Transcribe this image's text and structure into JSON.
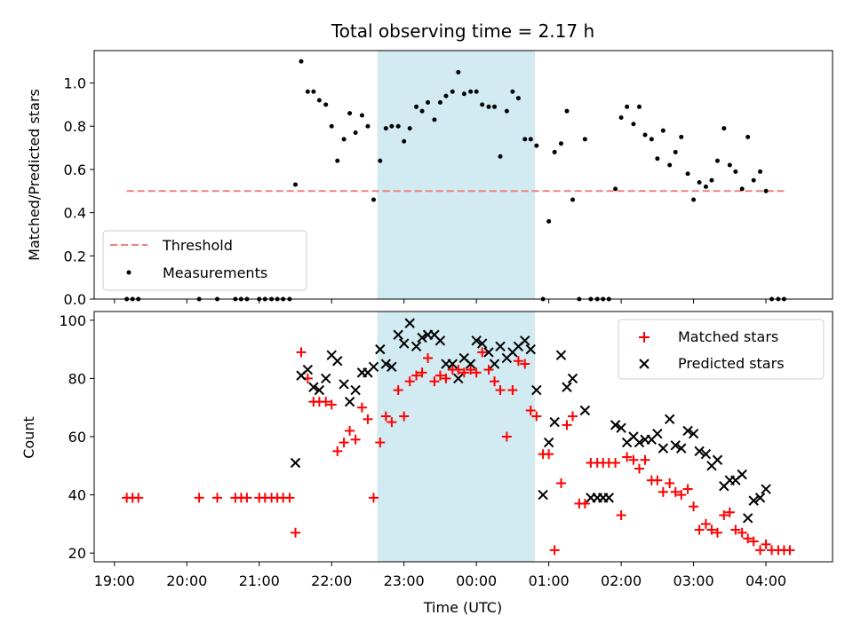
{
  "chart_data": {
    "type": "scatter",
    "title": "Total observing time = 2.17 h",
    "xlabel": "Time (UTC)",
    "x_ticks": [
      "19:00",
      "20:00",
      "21:00",
      "22:00",
      "23:00",
      "00:00",
      "01:00",
      "02:00",
      "03:00",
      "04:00"
    ],
    "x_range_hours": [
      18.72,
      28.92
    ],
    "shaded_interval_hours": [
      22.63,
      24.81
    ],
    "shade_color": "#add8e6",
    "top": {
      "ylabel": "Matched/Predicted stars",
      "ylim": [
        0,
        1.15
      ],
      "y_ticks": [
        0.0,
        0.2,
        0.4,
        0.6,
        0.8,
        1.0
      ],
      "legend_position": "lower-left",
      "threshold": {
        "name": "Threshold",
        "value": 0.5,
        "x_range_hours": [
          19.17,
          28.25
        ],
        "color": "#f08080",
        "style": "dashed"
      },
      "series": [
        {
          "name": "Measurements",
          "color": "#000000",
          "marker": "dot",
          "points": [
            [
              19.17,
              0
            ],
            [
              19.25,
              0
            ],
            [
              19.33,
              0
            ],
            [
              20.17,
              0
            ],
            [
              20.42,
              0
            ],
            [
              20.67,
              0
            ],
            [
              20.75,
              0
            ],
            [
              20.83,
              0
            ],
            [
              21.0,
              0
            ],
            [
              21.08,
              0
            ],
            [
              21.17,
              0
            ],
            [
              21.25,
              0
            ],
            [
              21.33,
              0
            ],
            [
              21.42,
              0
            ],
            [
              21.5,
              0.53
            ],
            [
              21.58,
              1.1
            ],
            [
              21.67,
              0.96
            ],
            [
              21.75,
              0.96
            ],
            [
              21.83,
              0.92
            ],
            [
              21.92,
              0.9
            ],
            [
              22.0,
              0.8
            ],
            [
              22.08,
              0.64
            ],
            [
              22.17,
              0.74
            ],
            [
              22.25,
              0.86
            ],
            [
              22.33,
              0.77
            ],
            [
              22.42,
              0.85
            ],
            [
              22.5,
              0.8
            ],
            [
              22.58,
              0.46
            ],
            [
              22.67,
              0.64
            ],
            [
              22.75,
              0.79
            ],
            [
              22.83,
              0.8
            ],
            [
              22.92,
              0.8
            ],
            [
              23.0,
              0.73
            ],
            [
              23.08,
              0.79
            ],
            [
              23.17,
              0.89
            ],
            [
              23.25,
              0.87
            ],
            [
              23.33,
              0.91
            ],
            [
              23.42,
              0.83
            ],
            [
              23.5,
              0.91
            ],
            [
              23.58,
              0.94
            ],
            [
              23.67,
              0.96
            ],
            [
              23.75,
              1.05
            ],
            [
              23.83,
              0.95
            ],
            [
              23.92,
              0.96
            ],
            [
              24.0,
              0.96
            ],
            [
              24.08,
              0.9
            ],
            [
              24.17,
              0.89
            ],
            [
              24.25,
              0.89
            ],
            [
              24.33,
              0.66
            ],
            [
              24.42,
              0.87
            ],
            [
              24.5,
              0.96
            ],
            [
              24.58,
              0.93
            ],
            [
              24.67,
              0.74
            ],
            [
              24.75,
              0.74
            ],
            [
              24.83,
              0.71
            ],
            [
              24.92,
              0
            ],
            [
              25.0,
              0.36
            ],
            [
              25.08,
              0.68
            ],
            [
              25.17,
              0.72
            ],
            [
              25.25,
              0.87
            ],
            [
              25.33,
              0.46
            ],
            [
              25.42,
              0
            ],
            [
              25.5,
              0.74
            ],
            [
              25.58,
              0
            ],
            [
              25.67,
              0
            ],
            [
              25.75,
              0
            ],
            [
              25.83,
              0
            ],
            [
              25.92,
              0.51
            ],
            [
              26.0,
              0.84
            ],
            [
              26.08,
              0.89
            ],
            [
              26.17,
              0.81
            ],
            [
              26.25,
              0.89
            ],
            [
              26.33,
              0.76
            ],
            [
              26.42,
              0.74
            ],
            [
              26.5,
              0.65
            ],
            [
              26.58,
              0.78
            ],
            [
              26.67,
              0.62
            ],
            [
              26.75,
              0.68
            ],
            [
              26.83,
              0.75
            ],
            [
              26.92,
              0.58
            ],
            [
              27.0,
              0.46
            ],
            [
              27.08,
              0.54
            ],
            [
              27.17,
              0.52
            ],
            [
              27.25,
              0.55
            ],
            [
              27.33,
              0.64
            ],
            [
              27.42,
              0.79
            ],
            [
              27.5,
              0.62
            ],
            [
              27.58,
              0.59
            ],
            [
              27.67,
              0.51
            ],
            [
              27.75,
              0.75
            ],
            [
              27.83,
              0.55
            ],
            [
              27.92,
              0.59
            ],
            [
              28.0,
              0.5
            ],
            [
              28.08,
              0
            ],
            [
              28.17,
              0
            ],
            [
              28.25,
              0
            ]
          ]
        }
      ]
    },
    "bottom": {
      "ylabel": "Count",
      "ylim": [
        17,
        103
      ],
      "y_ticks": [
        20,
        40,
        60,
        80,
        100
      ],
      "legend_position": "upper-right",
      "series": [
        {
          "name": "Matched stars",
          "color": "#ff0000",
          "marker": "plus",
          "points": [
            [
              19.17,
              39
            ],
            [
              19.25,
              39
            ],
            [
              19.33,
              39
            ],
            [
              20.17,
              39
            ],
            [
              20.42,
              39
            ],
            [
              20.67,
              39
            ],
            [
              20.75,
              39
            ],
            [
              20.83,
              39
            ],
            [
              21.0,
              39
            ],
            [
              21.08,
              39
            ],
            [
              21.17,
              39
            ],
            [
              21.25,
              39
            ],
            [
              21.33,
              39
            ],
            [
              21.42,
              39
            ],
            [
              21.5,
              27
            ],
            [
              21.58,
              89
            ],
            [
              21.67,
              80
            ],
            [
              21.75,
              72
            ],
            [
              21.83,
              72
            ],
            [
              21.92,
              72
            ],
            [
              22.0,
              71
            ],
            [
              22.08,
              55
            ],
            [
              22.17,
              58
            ],
            [
              22.25,
              62
            ],
            [
              22.33,
              59
            ],
            [
              22.42,
              70
            ],
            [
              22.5,
              66
            ],
            [
              22.58,
              39
            ],
            [
              22.67,
              58
            ],
            [
              22.75,
              67
            ],
            [
              22.83,
              65
            ],
            [
              22.92,
              76
            ],
            [
              23.0,
              67
            ],
            [
              23.08,
              79
            ],
            [
              23.17,
              81
            ],
            [
              23.25,
              82
            ],
            [
              23.33,
              87
            ],
            [
              23.42,
              79
            ],
            [
              23.5,
              81
            ],
            [
              23.58,
              80
            ],
            [
              23.67,
              83
            ],
            [
              23.75,
              83
            ],
            [
              23.83,
              82
            ],
            [
              23.92,
              83
            ],
            [
              24.0,
              82
            ],
            [
              24.08,
              89
            ],
            [
              24.17,
              83
            ],
            [
              24.25,
              79
            ],
            [
              24.33,
              76
            ],
            [
              24.42,
              60
            ],
            [
              24.5,
              76
            ],
            [
              24.58,
              86
            ],
            [
              24.67,
              85
            ],
            [
              24.75,
              69
            ],
            [
              24.83,
              67
            ],
            [
              24.92,
              54
            ],
            [
              25.0,
              54
            ],
            [
              25.08,
              21
            ],
            [
              25.17,
              44
            ],
            [
              25.25,
              64
            ],
            [
              25.33,
              67
            ],
            [
              25.42,
              37
            ],
            [
              25.5,
              37
            ],
            [
              25.58,
              51
            ],
            [
              25.67,
              51
            ],
            [
              25.75,
              51
            ],
            [
              25.83,
              51
            ],
            [
              25.92,
              51
            ],
            [
              26.0,
              33
            ],
            [
              26.08,
              53
            ],
            [
              26.17,
              52
            ],
            [
              26.25,
              49
            ],
            [
              26.33,
              52
            ],
            [
              26.42,
              45
            ],
            [
              26.5,
              45
            ],
            [
              26.58,
              41
            ],
            [
              26.67,
              44
            ],
            [
              26.75,
              41
            ],
            [
              26.83,
              40
            ],
            [
              26.92,
              42
            ],
            [
              27.0,
              36
            ],
            [
              27.08,
              28
            ],
            [
              27.17,
              30
            ],
            [
              27.25,
              28
            ],
            [
              27.33,
              27
            ],
            [
              27.42,
              33
            ],
            [
              27.5,
              34
            ],
            [
              27.58,
              28
            ],
            [
              27.67,
              27
            ],
            [
              27.75,
              25
            ],
            [
              27.83,
              24
            ],
            [
              27.92,
              21
            ],
            [
              28.0,
              23
            ],
            [
              28.08,
              21
            ],
            [
              28.17,
              21
            ],
            [
              28.25,
              21
            ],
            [
              28.33,
              21
            ]
          ]
        },
        {
          "name": "Predicted stars",
          "color": "#000000",
          "marker": "x",
          "points": [
            [
              21.5,
              51
            ],
            [
              21.58,
              81
            ],
            [
              21.67,
              83
            ],
            [
              21.75,
              77
            ],
            [
              21.83,
              76
            ],
            [
              21.92,
              80
            ],
            [
              22.0,
              88
            ],
            [
              22.08,
              86
            ],
            [
              22.17,
              78
            ],
            [
              22.25,
              72
            ],
            [
              22.33,
              76
            ],
            [
              22.42,
              82
            ],
            [
              22.5,
              82
            ],
            [
              22.58,
              84
            ],
            [
              22.67,
              90
            ],
            [
              22.75,
              85
            ],
            [
              22.83,
              84
            ],
            [
              22.92,
              95
            ],
            [
              23.0,
              92
            ],
            [
              23.08,
              99
            ],
            [
              23.17,
              91
            ],
            [
              23.25,
              94
            ],
            [
              23.33,
              95
            ],
            [
              23.42,
              95
            ],
            [
              23.5,
              93
            ],
            [
              23.58,
              85
            ],
            [
              23.67,
              85
            ],
            [
              23.75,
              80
            ],
            [
              23.83,
              87
            ],
            [
              23.92,
              85
            ],
            [
              24.0,
              93
            ],
            [
              24.08,
              92
            ],
            [
              24.17,
              89
            ],
            [
              24.25,
              85
            ],
            [
              24.33,
              91
            ],
            [
              24.42,
              87
            ],
            [
              24.5,
              89
            ],
            [
              24.58,
              91
            ],
            [
              24.67,
              93
            ],
            [
              24.75,
              90
            ],
            [
              24.83,
              76
            ],
            [
              24.92,
              40
            ],
            [
              25.0,
              58
            ],
            [
              25.08,
              65
            ],
            [
              25.17,
              88
            ],
            [
              25.25,
              77
            ],
            [
              25.33,
              80
            ],
            [
              25.5,
              69
            ],
            [
              25.58,
              39
            ],
            [
              25.67,
              39
            ],
            [
              25.75,
              39
            ],
            [
              25.83,
              39
            ],
            [
              25.92,
              64
            ],
            [
              26.0,
              63
            ],
            [
              26.08,
              58
            ],
            [
              26.17,
              60
            ],
            [
              26.25,
              58
            ],
            [
              26.33,
              59
            ],
            [
              26.42,
              59
            ],
            [
              26.5,
              61
            ],
            [
              26.58,
              56
            ],
            [
              26.67,
              66
            ],
            [
              26.75,
              57
            ],
            [
              26.83,
              56
            ],
            [
              26.92,
              62
            ],
            [
              27.0,
              61
            ],
            [
              27.08,
              55
            ],
            [
              27.17,
              54
            ],
            [
              27.25,
              50
            ],
            [
              27.33,
              52
            ],
            [
              27.42,
              43
            ],
            [
              27.5,
              45
            ],
            [
              27.58,
              45
            ],
            [
              27.67,
              47
            ],
            [
              27.75,
              32
            ],
            [
              27.83,
              38
            ],
            [
              27.92,
              39
            ],
            [
              28.0,
              42
            ]
          ]
        }
      ]
    }
  }
}
